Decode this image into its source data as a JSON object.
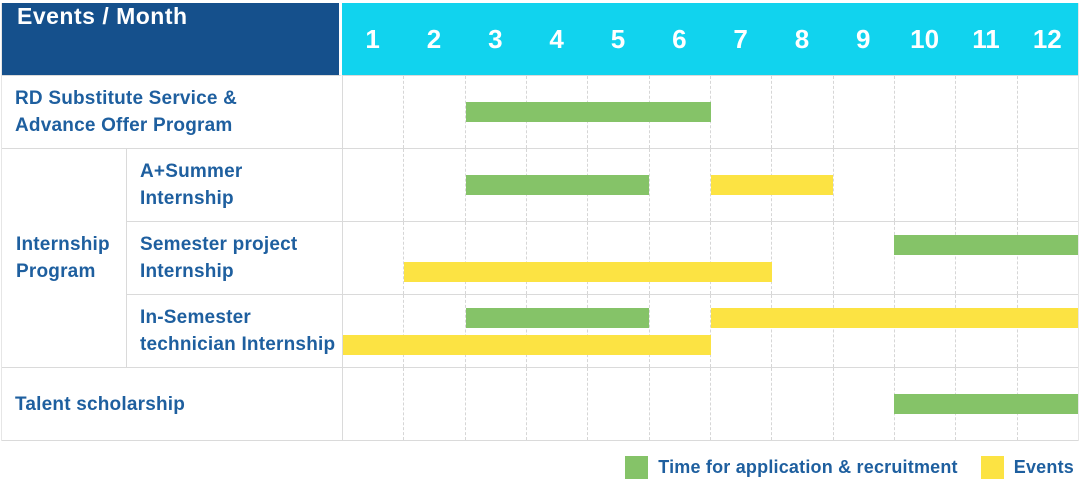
{
  "header": {
    "label": "Events / Month",
    "months": [
      "1",
      "2",
      "3",
      "4",
      "5",
      "6",
      "7",
      "8",
      "9",
      "10",
      "11",
      "12"
    ]
  },
  "colors": {
    "header_bg": "#15508C",
    "month_strip_bg": "#11D3EE",
    "application_green": "#85C368",
    "event_yellow": "#FCE343",
    "label_text_blue": "#1E5F9F",
    "grid_line": "#DADADA"
  },
  "groups": {
    "Internship Program": {
      "label_lines": [
        "Internship",
        "Program"
      ]
    }
  },
  "chart_data": {
    "type": "bar",
    "variant": "gantt-schedule",
    "title": "Events / Month",
    "x": {
      "unit": "month",
      "range": [
        1,
        12
      ],
      "ticks": [
        "1",
        "2",
        "3",
        "4",
        "5",
        "6",
        "7",
        "8",
        "9",
        "10",
        "11",
        "12"
      ]
    },
    "legend_position": "bottom-right",
    "grid": "dashed-vertical-month-lines",
    "legend": [
      {
        "key": "application",
        "label": "Time for application & recruitment",
        "color": "#85C368"
      },
      {
        "key": "event",
        "label": "Events",
        "color": "#FCE343"
      }
    ],
    "rows": [
      {
        "label": "RD Substitute Service & Advance Offer Program",
        "label_lines": [
          "RD Substitute Service &",
          "Advance Offer Program"
        ],
        "group": null,
        "lines": [
          [
            {
              "series": "application",
              "start_month": 3,
              "end_month": 6
            }
          ]
        ]
      },
      {
        "label": "A+Summer Internship",
        "label_lines": [
          "A+Summer",
          "Internship"
        ],
        "group": "Internship Program",
        "lines": [
          [
            {
              "series": "application",
              "start_month": 3,
              "end_month": 5
            },
            {
              "series": "event",
              "start_month": 7,
              "end_month": 8
            }
          ]
        ]
      },
      {
        "label": "Semester project Internship",
        "label_lines": [
          "Semester project",
          "Internship"
        ],
        "group": "Internship Program",
        "lines": [
          [
            {
              "series": "application",
              "start_month": 10,
              "end_month": 12
            }
          ],
          [
            {
              "series": "event",
              "start_month": 2,
              "end_month": 7
            }
          ]
        ]
      },
      {
        "label": "In-Semester technician Internship",
        "label_lines": [
          "In-Semester",
          "technician Internship"
        ],
        "group": "Internship Program",
        "lines": [
          [
            {
              "series": "application",
              "start_month": 3,
              "end_month": 5
            },
            {
              "series": "event",
              "start_month": 7,
              "end_month": 12
            }
          ],
          [
            {
              "series": "event",
              "start_month": 1,
              "end_month": 6
            }
          ]
        ]
      },
      {
        "label": "Talent scholarship",
        "label_lines": [
          "Talent scholarship"
        ],
        "group": null,
        "lines": [
          [
            {
              "series": "application",
              "start_month": 10,
              "end_month": 12
            }
          ]
        ]
      }
    ]
  }
}
